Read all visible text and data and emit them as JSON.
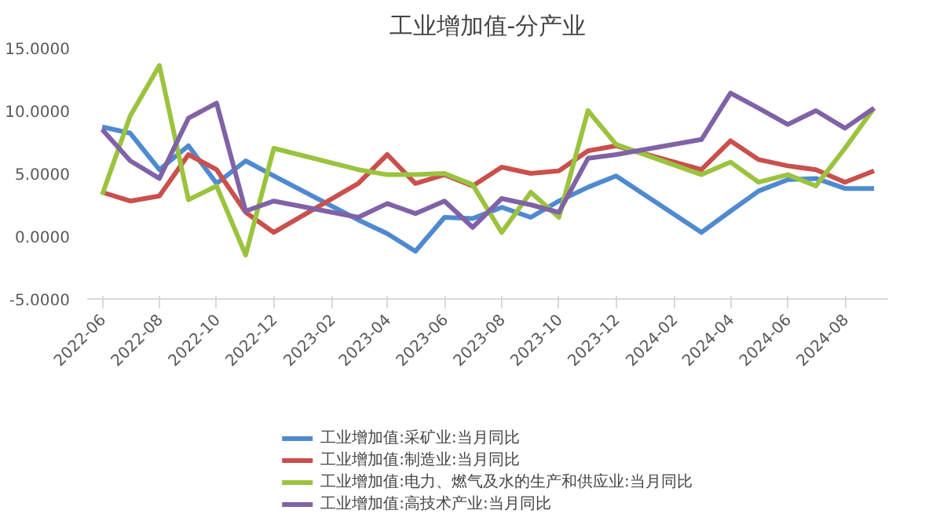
{
  "chart_data": {
    "type": "line",
    "title": "工业增加值-分产业",
    "x": [
      "2022-06",
      "2022-07",
      "2022-08",
      "2022-09",
      "2022-10",
      "2022-11",
      "2022-12",
      "2023-03",
      "2023-04",
      "2023-05",
      "2023-06",
      "2023-07",
      "2023-08",
      "2023-09",
      "2023-10",
      "2023-11",
      "2023-12",
      "2024-03",
      "2024-04",
      "2024-05",
      "2024-06",
      "2024-07",
      "2024-08",
      "2024-09"
    ],
    "series": [
      {
        "name": "工业增加值:采矿业:当月同比",
        "color": "#4f8ad0",
        "values": [
          8.7,
          8.2,
          5.3,
          7.2,
          4.2,
          6.0,
          4.8,
          1.3,
          0.2,
          -1.2,
          1.5,
          1.4,
          2.3,
          1.5,
          2.8,
          3.9,
          4.8,
          0.3,
          2.0,
          3.6,
          4.5,
          4.6,
          3.8,
          3.8
        ]
      },
      {
        "name": "工业增加值:制造业:当月同比",
        "color": "#c9504d",
        "values": [
          3.5,
          2.8,
          3.2,
          6.5,
          5.3,
          1.9,
          0.3,
          4.2,
          6.5,
          4.2,
          4.9,
          4.0,
          5.5,
          5.0,
          5.2,
          6.8,
          7.2,
          5.3,
          7.6,
          6.1,
          5.6,
          5.3,
          4.3,
          5.2
        ]
      },
      {
        "name": "工业增加值:电力、燃气及水的生产和供应业:当月同比",
        "color": "#9bc33f",
        "values": [
          3.3,
          9.6,
          13.6,
          2.9,
          4.0,
          -1.5,
          7.0,
          5.3,
          4.9,
          4.9,
          5.0,
          4.1,
          0.3,
          3.5,
          1.5,
          10.0,
          7.3,
          4.9,
          5.9,
          4.3,
          4.9,
          4.0,
          7.0,
          10.2
        ]
      },
      {
        "name": "工业增加值:高技术产业:当月同比",
        "color": "#8062a6",
        "values": [
          8.5,
          6.0,
          4.6,
          9.4,
          10.6,
          2.0,
          2.8,
          1.5,
          2.6,
          1.8,
          2.8,
          0.7,
          3.0,
          2.5,
          1.9,
          6.2,
          6.5,
          7.7,
          11.4,
          10.2,
          8.9,
          10.0,
          8.6,
          10.2
        ]
      }
    ],
    "xlim": [
      "2022-05-16",
      "2024-09-16"
    ],
    "xticks": [
      {
        "value": "2022-06",
        "label": "2022-06"
      },
      {
        "value": "2022-08",
        "label": "2022-08"
      },
      {
        "value": "2022-10",
        "label": "2022-10"
      },
      {
        "value": "2022-12",
        "label": "2022-12"
      },
      {
        "value": "2023-02",
        "label": "2023-02"
      },
      {
        "value": "2023-04",
        "label": "2023-04"
      },
      {
        "value": "2023-06",
        "label": "2023-06"
      },
      {
        "value": "2023-08",
        "label": "2023-08"
      },
      {
        "value": "2023-10",
        "label": "2023-10"
      },
      {
        "value": "2023-12",
        "label": "2023-12"
      },
      {
        "value": "2024-02",
        "label": "2024-02"
      },
      {
        "value": "2024-04",
        "label": "2024-04"
      },
      {
        "value": "2024-06",
        "label": "2024-06"
      },
      {
        "value": "2024-08",
        "label": "2024-08"
      }
    ],
    "ylim": [
      -5,
      15
    ],
    "yticks": [
      {
        "value": -5,
        "label": "-5.0000"
      },
      {
        "value": 0,
        "label": "0.0000"
      },
      {
        "value": 5,
        "label": "5.0000"
      },
      {
        "value": 10,
        "label": "10.0000"
      },
      {
        "value": 15,
        "label": "15.0000"
      }
    ],
    "grid": false,
    "legend": "bottom",
    "line_style": "solid"
  }
}
